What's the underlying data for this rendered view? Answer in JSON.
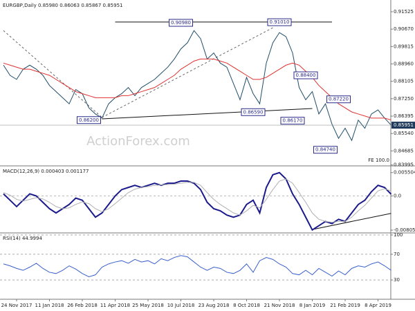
{
  "chart_data": [
    {
      "type": "line",
      "title": "EURGBP,Daily  0.85980 0.86063 0.85867 0.85951",
      "categories": [
        null,
        null,
        "24 Nov 2017",
        null,
        null,
        null,
        null,
        "11 Jan 2018",
        null,
        null,
        null,
        null,
        "26 Feb 2018",
        null,
        null,
        null,
        null,
        "11 Apr 2018",
        null,
        null,
        null,
        null,
        "25 May 2018",
        null,
        null,
        null,
        null,
        "10 Jul 2018",
        null,
        null,
        null,
        null,
        "23 Aug 2018",
        null,
        null,
        null,
        null,
        "8 Oct 2018",
        null,
        null,
        null,
        null,
        "21 Nov 2018",
        null,
        null,
        null,
        null,
        "8 Jan 2019",
        null,
        null,
        null,
        null,
        "21 Feb 2019",
        null,
        null,
        null,
        null,
        "8 Apr 2019",
        null,
        null
      ],
      "series": [
        {
          "name": "EURGBP",
          "color": "#1f4e6a",
          "values": [
            0.889,
            0.884,
            0.882,
            0.887,
            0.889,
            0.887,
            0.884,
            0.879,
            0.876,
            0.873,
            0.87,
            0.877,
            0.875,
            0.868,
            0.865,
            0.863,
            0.87,
            0.873,
            0.875,
            0.878,
            0.874,
            0.878,
            0.88,
            0.882,
            0.885,
            0.888,
            0.892,
            0.897,
            0.9,
            0.906,
            0.902,
            0.892,
            0.895,
            0.89,
            0.888,
            0.88,
            0.872,
            0.883,
            0.875,
            0.87,
            0.89,
            0.9,
            0.905,
            0.903,
            0.895,
            0.878,
            0.872,
            0.876,
            0.865,
            0.87,
            0.86,
            0.853,
            0.858,
            0.852,
            0.862,
            0.858,
            0.865,
            0.867,
            0.863,
            0.85951
          ]
        },
        {
          "name": "MA",
          "color": "#e03030",
          "values": [
            0.89,
            0.889,
            0.888,
            0.887,
            0.887,
            0.886,
            0.885,
            0.884,
            0.882,
            0.88,
            0.878,
            0.876,
            0.875,
            0.874,
            0.873,
            0.873,
            0.873,
            0.873,
            0.874,
            0.874,
            0.875,
            0.876,
            0.877,
            0.878,
            0.88,
            0.882,
            0.884,
            0.887,
            0.889,
            0.891,
            0.892,
            0.892,
            0.892,
            0.891,
            0.89,
            0.888,
            0.886,
            0.884,
            0.882,
            0.882,
            0.883,
            0.885,
            0.887,
            0.889,
            0.89,
            0.889,
            0.886,
            0.883,
            0.879,
            0.876,
            0.873,
            0.87,
            0.868,
            0.866,
            0.865,
            0.864,
            0.863,
            0.863,
            0.863,
            0.862
          ]
        }
      ],
      "ylim": [
        0.8395,
        0.92
      ],
      "yticks": [
        0.91525,
        {
          "value": 0.9067,
          "label": "0.90670"
        },
        0.89815,
        {
          "value": 0.8896,
          "label": "0.88960"
        },
        0.88105,
        {
          "value": 0.8725,
          "label": "0.87250"
        },
        0.86395,
        {
          "value": 0.8554,
          "label": "0.85540"
        },
        0.84685,
        0.83995
      ],
      "annotations": [
        {
          "value": 0.9098,
          "label": "0.90980",
          "index": 27
        },
        {
          "value": 0.9101,
          "label": "0.91010",
          "index": 42
        },
        {
          "value": 0.884,
          "label": "0.88400",
          "index": 46
        },
        {
          "value": 0.8722,
          "label": "0.87220",
          "index": 51
        },
        {
          "value": 0.8659,
          "label": "0.86590",
          "index": 38
        },
        {
          "value": 0.8617,
          "label": "0.86170",
          "index": 44
        },
        {
          "value": 0.862,
          "label": "0.86200",
          "index": 13
        },
        {
          "value": 0.8474,
          "label": "0.84740",
          "index": 49
        }
      ],
      "trendlines": [
        {
          "from": [
            17,
            0.9102
          ],
          "to": [
            50,
            0.9102
          ],
          "dashed": false
        },
        {
          "from": [
            15,
            0.8626
          ],
          "to": [
            47,
            0.8677
          ],
          "dashed": false
        },
        {
          "from": [
            15,
            0.8633
          ],
          "to": [
            41,
            0.9074
          ],
          "dashed": true
        },
        {
          "from": [
            0,
            0.906
          ],
          "to": [
            15,
            0.8633
          ],
          "dashed": true
        }
      ],
      "watermark": "ActionForex.com",
      "footnote": "FE 100.0"
    },
    {
      "type": "line",
      "title": "MACD(12,26,9) 0.000403 0.001177",
      "series": [
        {
          "name": "MACD",
          "color": "#1a1a8c",
          "values": [
            0.0005,
            -0.001,
            -0.0025,
            -0.001,
            0.0005,
            0.0,
            -0.0015,
            -0.003,
            -0.004,
            -0.003,
            -0.002,
            -0.0005,
            -0.001,
            -0.003,
            -0.005,
            -0.004,
            -0.002,
            0.0,
            0.0015,
            0.002,
            0.0025,
            0.002,
            0.0025,
            0.003,
            0.0025,
            0.003,
            0.003,
            0.0035,
            0.0035,
            0.003,
            0.0015,
            -0.0015,
            -0.003,
            -0.0035,
            -0.0045,
            -0.005,
            -0.0045,
            -0.002,
            -0.001,
            -0.004,
            0.002,
            0.005,
            0.0055,
            0.004,
            0.0005,
            -0.002,
            -0.005,
            -0.008,
            -0.007,
            -0.006,
            -0.0065,
            -0.0055,
            -0.006,
            -0.004,
            -0.002,
            -0.001,
            0.001,
            0.0025,
            0.002,
            0.000403
          ]
        },
        {
          "name": "Signal",
          "color": "#b0b0b0",
          "values": [
            0.0008,
            0.0002,
            -0.0008,
            -0.0012,
            -0.0008,
            -0.0004,
            -0.0007,
            -0.0015,
            -0.0025,
            -0.003,
            -0.0028,
            -0.002,
            -0.0014,
            -0.0018,
            -0.003,
            -0.0037,
            -0.003,
            -0.0018,
            -0.0005,
            0.0008,
            0.0016,
            0.002,
            0.0022,
            0.0025,
            0.0026,
            0.0027,
            0.0028,
            0.003,
            0.0032,
            0.0032,
            0.0025,
            0.0008,
            -0.0008,
            -0.002,
            -0.003,
            -0.004,
            -0.0045,
            -0.0035,
            -0.0022,
            -0.0028,
            -0.0008,
            0.0015,
            0.0035,
            0.004,
            0.003,
            0.0008,
            -0.0015,
            -0.004,
            -0.0055,
            -0.006,
            -0.0062,
            -0.006,
            -0.006,
            -0.005,
            -0.0035,
            -0.0022,
            -0.0005,
            0.0012,
            0.0017,
            0.001177
          ]
        }
      ],
      "ylim": [
        -0.0087,
        0.0066
      ],
      "yticks": [
        0.005504,
        {
          "value": 0,
          "label": "0.0"
        },
        -0.00805
      ],
      "trendlines": [
        {
          "from": [
            47,
            -0.0079
          ],
          "to": [
            59,
            -0.0041
          ],
          "dashed": false
        }
      ]
    },
    {
      "type": "line",
      "title": "RSI(14) 44.9994",
      "series": [
        {
          "name": "RSI",
          "color": "#3a5fcd",
          "values": [
            55,
            52,
            48,
            45,
            50,
            56,
            48,
            42,
            40,
            45,
            52,
            47,
            40,
            35,
            38,
            50,
            55,
            58,
            60,
            56,
            62,
            58,
            60,
            55,
            63,
            60,
            65,
            68,
            66,
            58,
            50,
            45,
            50,
            48,
            42,
            40,
            45,
            55,
            42,
            60,
            65,
            62,
            55,
            50,
            40,
            38,
            45,
            38,
            48,
            42,
            36,
            44,
            38,
            48,
            52,
            50,
            55,
            58,
            52,
            44.9994
          ]
        }
      ],
      "ylim": [
        0,
        100
      ],
      "yticks": [
        100,
        70,
        30
      ],
      "grid": true
    }
  ]
}
